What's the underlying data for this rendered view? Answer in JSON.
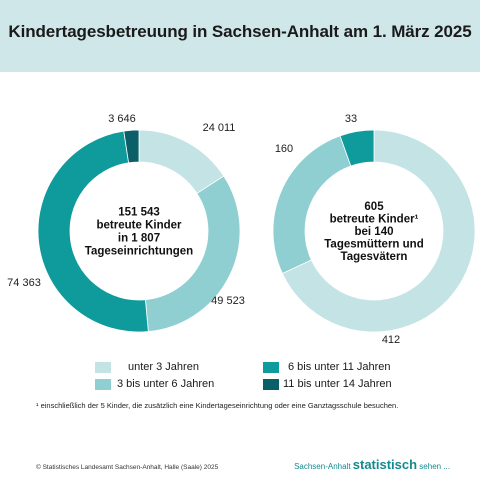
{
  "title": "Kindertagesbetreuung in Sachsen-Anhalt am 1. März 2025",
  "colors": {
    "header_bg": "#cfe7e9",
    "unter3": "#c4e3e5",
    "3bis6": "#8fcfd1",
    "6bis11": "#0f9a9c",
    "11bis14": "#0b5f68"
  },
  "chart_data": [
    {
      "type": "pie",
      "donut": true,
      "center_lines": [
        "151 543",
        "betreute Kinder",
        "in 1 807",
        "Tageseinrichtungen"
      ],
      "slices": [
        {
          "category": "unter 3 Jahren",
          "value": 24011,
          "label": "24 011",
          "color": "#c4e3e5"
        },
        {
          "category": "3 bis unter 6 Jahren",
          "value": 49523,
          "label": "49 523",
          "color": "#8fcfd1"
        },
        {
          "category": "6 bis unter 11 Jahren",
          "value": 74363,
          "label": "74 363",
          "color": "#0f9a9c"
        },
        {
          "category": "11 bis unter 14 Jahren",
          "value": 3646,
          "label": "3 646",
          "color": "#0b5f68"
        }
      ]
    },
    {
      "type": "pie",
      "donut": true,
      "center_lines": [
        "605",
        "betreute Kinder¹",
        "bei 140",
        "Tagesmüttern und",
        "Tagesvätern"
      ],
      "slices": [
        {
          "category": "unter 3 Jahren",
          "value": 412,
          "label": "412",
          "color": "#c4e3e5"
        },
        {
          "category": "3 bis unter 6 Jahren",
          "value": 160,
          "label": "160",
          "color": "#8fcfd1"
        },
        {
          "category": "6 bis unter 11 Jahren",
          "value": 33,
          "label": "33",
          "color": "#0f9a9c"
        }
      ]
    }
  ],
  "legend": [
    {
      "label": "unter 3 Jahren",
      "color": "#c4e3e5"
    },
    {
      "label": "3 bis unter 6 Jahren",
      "color": "#8fcfd1"
    },
    {
      "label": "6 bis unter 11 Jahren",
      "color": "#0f9a9c"
    },
    {
      "label": "11 bis unter 14 Jahren",
      "color": "#0b5f68"
    }
  ],
  "footnote": "¹ einschließlich der 5 Kinder, die zusätzlich eine Kindertageseinrichtung oder eine Ganztagsschule besuchen.",
  "copyright": "© Statistisches Landesamt Sachsen-Anhalt, Halle (Saale) 2025",
  "brand": {
    "prefix": "Sachsen-Anhalt ",
    "main": "statistisch",
    "suffix": " sehen ..."
  }
}
